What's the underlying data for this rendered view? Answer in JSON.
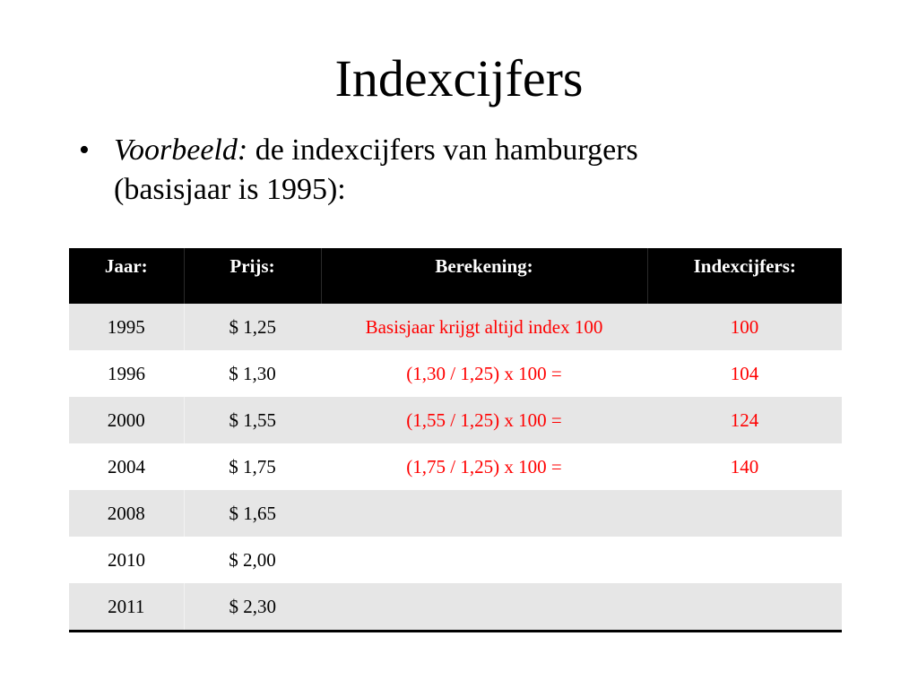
{
  "slide": {
    "title": "Indexcijfers",
    "bullet": {
      "symbol": "•",
      "lead_italic": "Voorbeeld:",
      "text_line1": "de indexcijfers van hamburgers",
      "text_line2": "(basisjaar is 1995):"
    }
  },
  "table": {
    "headers": [
      "Jaar:",
      "Prijs:",
      "Berekening:",
      "Indexcijfers:"
    ],
    "rows": [
      {
        "jaar": "1995",
        "prijs": "$ 1,25",
        "berekening": "Basisjaar krijgt altijd index 100",
        "index": "100"
      },
      {
        "jaar": "1996",
        "prijs": "$ 1,30",
        "berekening": "(1,30 / 1,25) x 100 =",
        "index": "104"
      },
      {
        "jaar": "2000",
        "prijs": "$ 1,55",
        "berekening": "(1,55 / 1,25) x 100 =",
        "index": "124"
      },
      {
        "jaar": "2004",
        "prijs": "$ 1,75",
        "berekening": "(1,75 / 1,25) x 100 =",
        "index": "140"
      },
      {
        "jaar": "2008",
        "prijs": "$ 1,65",
        "berekening": "",
        "index": ""
      },
      {
        "jaar": "2010",
        "prijs": "$ 2,00",
        "berekening": "",
        "index": ""
      },
      {
        "jaar": "2011",
        "prijs": "$ 2,30",
        "berekening": "",
        "index": ""
      }
    ]
  },
  "colors": {
    "header_bg": "#000000",
    "header_text": "#ffffff",
    "row_shade": "#e6e6e6",
    "calc_text": "#ff0000"
  }
}
